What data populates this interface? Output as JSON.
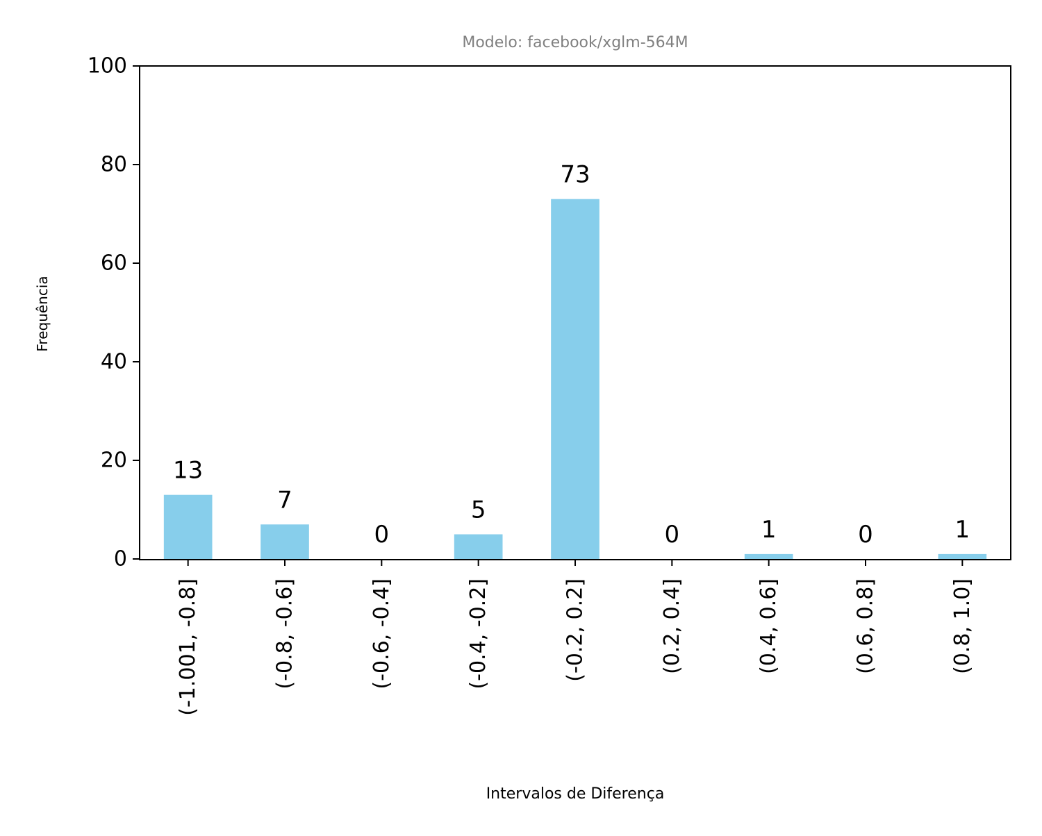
{
  "chart_data": {
    "type": "bar",
    "title": "Modelo: facebook/xglm-564M",
    "xlabel": "Intervalos de Diferença",
    "ylabel": "Frequência",
    "categories": [
      "(-1.001, -0.8]",
      "(-0.8, -0.6]",
      "(-0.6, -0.4]",
      "(-0.4, -0.2]",
      "(-0.2, 0.2]",
      "(0.2, 0.4]",
      "(0.4, 0.6]",
      "(0.6, 0.8]",
      "(0.8, 1.0]"
    ],
    "values": [
      13,
      7,
      0,
      5,
      73,
      0,
      1,
      0,
      1
    ],
    "data_labels": [
      "13",
      "7",
      "0",
      "5",
      "73",
      "0",
      "1",
      "0",
      "1"
    ],
    "ylim": [
      0,
      100
    ],
    "yticks": [
      0,
      20,
      40,
      60,
      80,
      100
    ],
    "grid": false,
    "bar_color": "#87ceeb",
    "title_color": "#808080"
  }
}
